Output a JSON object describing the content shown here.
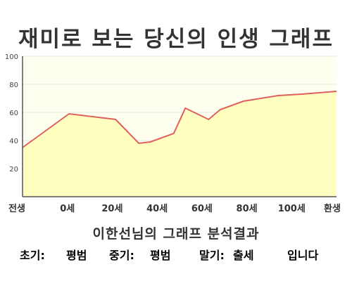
{
  "page": {
    "title": "재미로 보는 당신의 인생 그래프"
  },
  "chart_data": {
    "type": "area",
    "x_tick_labels": [
      "전생",
      "0세",
      "20세",
      "40세",
      "60세",
      "80세",
      "100세",
      "환생"
    ],
    "x": [
      -20,
      0,
      20,
      30,
      35,
      45,
      50,
      60,
      65,
      75,
      90,
      100,
      115
    ],
    "y": [
      35,
      59,
      55,
      38,
      39,
      45,
      63,
      55,
      62,
      68,
      72,
      73,
      75
    ],
    "xlim": [
      -20,
      115
    ],
    "ylim": [
      0,
      100
    ],
    "y_ticks": [
      20,
      40,
      60,
      80,
      100
    ],
    "grid": true,
    "colors": {
      "line": "#e0605e",
      "fill": "#ffffc0",
      "plot_background": "#fffff0",
      "grid": "#e6e6e6",
      "axis": "#555555"
    }
  },
  "result": {
    "title": "이한선님의 그래프 분석결과",
    "early_label": "초기:",
    "early_value": "평범",
    "middle_label": "중기:",
    "middle_value": "평범",
    "late_label": "말기:",
    "late_value": "출세",
    "ending": "입니다",
    "colors": {
      "value": "#e85a61",
      "label": "#222222"
    }
  }
}
